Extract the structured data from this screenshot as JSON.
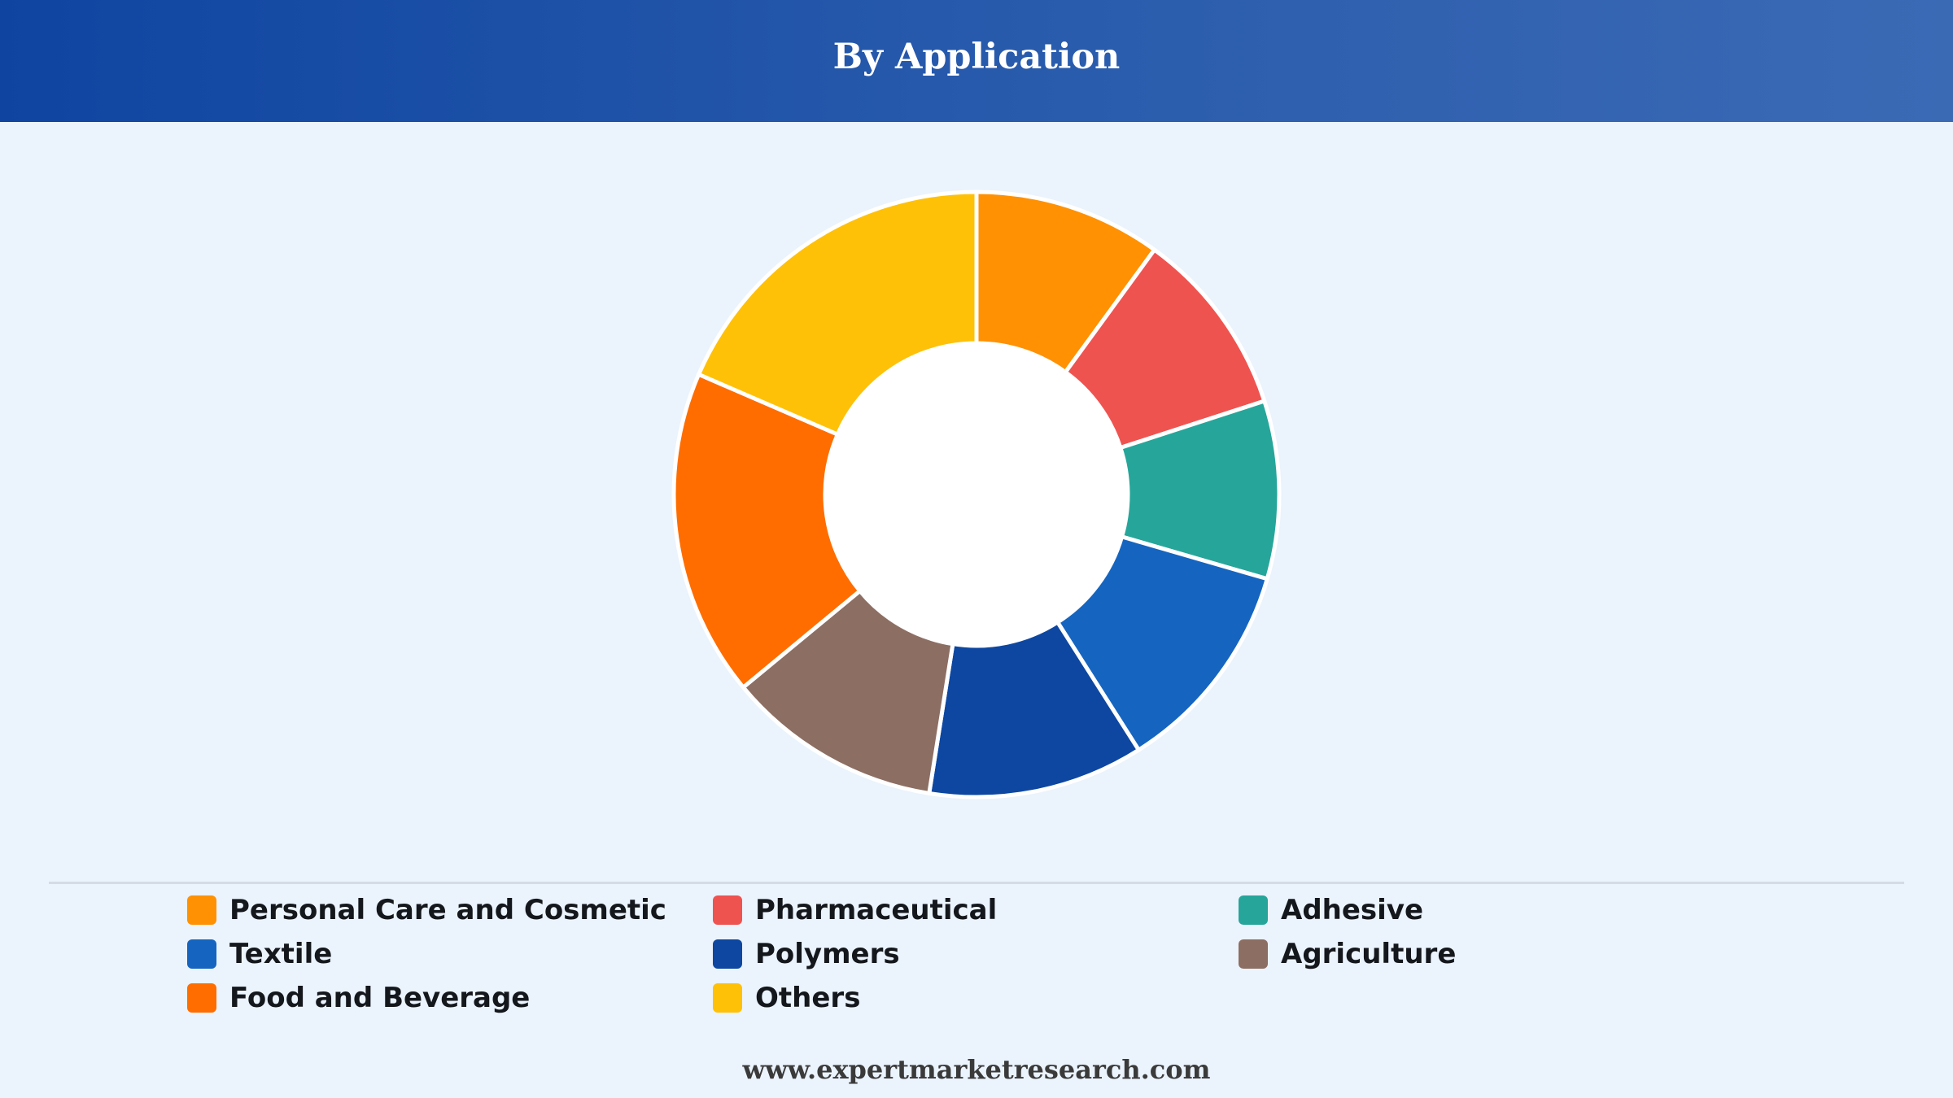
{
  "header": {
    "title": "By Application"
  },
  "chart_data": {
    "type": "pie",
    "style": "donut",
    "title": "By Application",
    "categories": [
      "Personal Care and Cosmetic",
      "Pharmaceutical",
      "Adhesive",
      "Textile",
      "Polymers",
      "Agriculture",
      "Food and Beverage",
      "Others"
    ],
    "values": [
      10,
      10,
      9.5,
      11.5,
      11.5,
      11.5,
      17.5,
      18.5
    ],
    "colors": [
      "#ff9102",
      "#ef5350",
      "#26a69a",
      "#1565c0",
      "#0d47a1",
      "#8d6e63",
      "#ff6d00",
      "#ffc107"
    ],
    "legend_position": "bottom",
    "grid": false
  },
  "legend": {
    "items": [
      {
        "label": "Personal Care and Cosmetic",
        "color": "#ff9102"
      },
      {
        "label": "Pharmaceutical",
        "color": "#ef5350"
      },
      {
        "label": "Adhesive",
        "color": "#26a69a"
      },
      {
        "label": "Textile",
        "color": "#1565c0"
      },
      {
        "label": "Polymers",
        "color": "#0d47a1"
      },
      {
        "label": "Agriculture",
        "color": "#8d6e63"
      },
      {
        "label": "Food and Beverage",
        "color": "#ff6d00"
      },
      {
        "label": "Others",
        "color": "#ffc107"
      }
    ]
  },
  "footer": {
    "source": "www.expertmarketresearch.com"
  }
}
